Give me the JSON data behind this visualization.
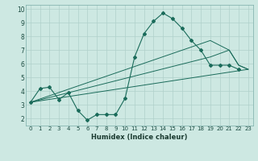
{
  "xlabel": "Humidex (Indice chaleur)",
  "bg_color": "#cde8e2",
  "grid_color": "#afd0cb",
  "line_color": "#1a6b5a",
  "xlim": [
    -0.5,
    23.5
  ],
  "ylim": [
    1.5,
    10.3
  ],
  "yticks": [
    2,
    3,
    4,
    5,
    6,
    7,
    8,
    9,
    10
  ],
  "xticks": [
    0,
    1,
    2,
    3,
    4,
    5,
    6,
    7,
    8,
    9,
    10,
    11,
    12,
    13,
    14,
    15,
    16,
    17,
    18,
    19,
    20,
    21,
    22,
    23
  ],
  "main_series": {
    "x": [
      0,
      1,
      2,
      3,
      4,
      5,
      6,
      7,
      8,
      9,
      10,
      11,
      12,
      13,
      14,
      15,
      16,
      17,
      18,
      19,
      20,
      21,
      22
    ],
    "y": [
      3.2,
      4.2,
      4.3,
      3.4,
      3.9,
      2.6,
      1.9,
      2.3,
      2.3,
      2.3,
      3.5,
      6.5,
      8.2,
      9.1,
      9.7,
      9.3,
      8.6,
      7.7,
      7.0,
      5.9,
      5.9,
      5.9,
      5.6
    ]
  },
  "straight_lines": [
    {
      "x": [
        0,
        23
      ],
      "y": [
        3.2,
        5.6
      ]
    },
    {
      "x": [
        0,
        19,
        21,
        22,
        23
      ],
      "y": [
        3.2,
        6.5,
        7.0,
        5.9,
        5.6
      ]
    },
    {
      "x": [
        0,
        19,
        21,
        22,
        23
      ],
      "y": [
        3.2,
        7.7,
        7.0,
        5.9,
        5.6
      ]
    }
  ]
}
